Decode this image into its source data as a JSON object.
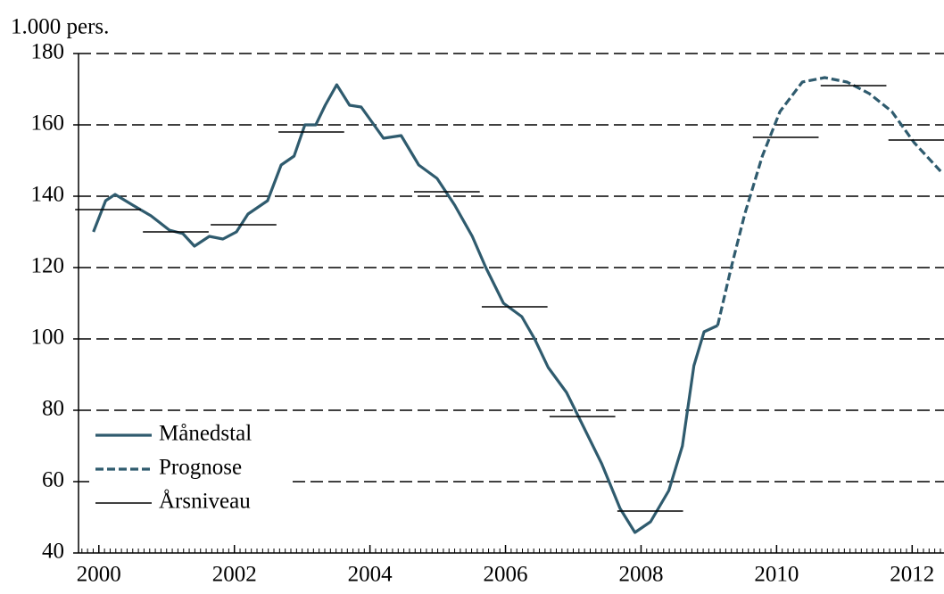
{
  "chart_data": {
    "type": "line",
    "y_label": "1.000 pers.",
    "xlim": [
      1999.7,
      2012.47
    ],
    "ylim": [
      40,
      180
    ],
    "xticks": [
      2000,
      2002,
      2004,
      2006,
      2008,
      2010,
      2012
    ],
    "yticks": [
      40,
      60,
      80,
      100,
      120,
      140,
      160,
      180
    ],
    "grid": true,
    "legend": "lower left",
    "series": [
      {
        "name": "Månedstal",
        "color": "#2f5b6e",
        "style": "solid",
        "x": [
          1999.92,
          2000.1,
          2000.24,
          2000.5,
          2000.77,
          2001.04,
          2001.24,
          2001.41,
          2001.63,
          2001.83,
          2002.03,
          2002.2,
          2002.49,
          2002.69,
          2002.88,
          2003.04,
          2003.2,
          2003.34,
          2003.51,
          2003.7,
          2003.87,
          2004.04,
          2004.2,
          2004.46,
          2004.72,
          2004.99,
          2005.25,
          2005.51,
          2005.71,
          2005.97,
          2006.24,
          2006.43,
          2006.63,
          2006.9,
          2007.16,
          2007.42,
          2007.69,
          2007.91,
          2008.14,
          2008.41,
          2008.61,
          2008.78,
          2008.93,
          2009.13
        ],
        "values": [
          130,
          138.75,
          140.5,
          137.5,
          134.5,
          130.5,
          129.5,
          126,
          128.75,
          128,
          130,
          135,
          138.75,
          148.75,
          151.25,
          160,
          160,
          165.5,
          171.25,
          165.5,
          165,
          160.5,
          156.25,
          157,
          148.75,
          145,
          137.5,
          128.75,
          120,
          110,
          106.25,
          100,
          92,
          85,
          75,
          65,
          52.5,
          45.75,
          48.75,
          57.5,
          70,
          92.5,
          102,
          103.75
        ]
      },
      {
        "name": "Prognose",
        "color": "#2f5b6e",
        "style": "dashed",
        "x": [
          2009.13,
          2009.33,
          2009.53,
          2009.79,
          2010.05,
          2010.38,
          2010.71,
          2011.04,
          2011.37,
          2011.7,
          2012.03,
          2012.42
        ],
        "values": [
          103.75,
          120,
          135,
          151.25,
          163.75,
          172,
          173.25,
          172,
          168.75,
          163.75,
          155,
          147
        ]
      },
      {
        "name": "Årsniveau",
        "color": "#000000",
        "style": "annual",
        "x": [
          2000,
          2001,
          2002,
          2003,
          2004,
          2005,
          2006,
          2007,
          2008,
          2009,
          2010,
          2011,
          2012
        ],
        "values": [
          136.25,
          130,
          132,
          158,
          null,
          141.25,
          109,
          78.25,
          51.75,
          null,
          156.5,
          171,
          155.75
        ]
      }
    ]
  }
}
